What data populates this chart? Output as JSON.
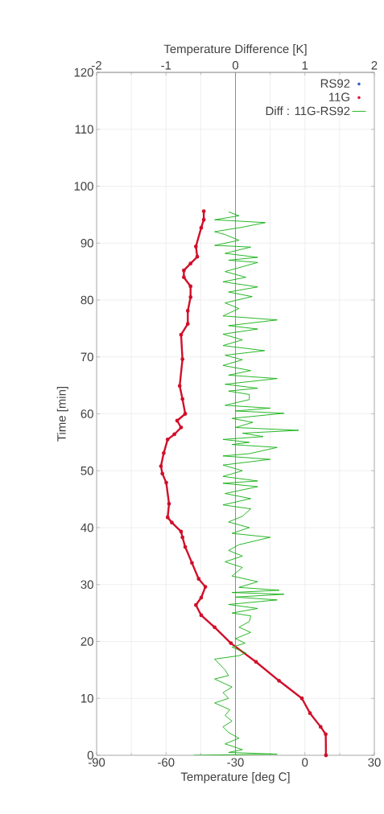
{
  "chart_data": {
    "type": "line",
    "xlabel": "Temperature [deg C]",
    "x2label": "Temperature Difference [K]",
    "ylabel": "Time [min]",
    "xlim": [
      -90,
      30
    ],
    "xticks": [
      -90,
      -60,
      -30,
      0,
      30
    ],
    "x2lim": [
      -2,
      2
    ],
    "x2ticks": [
      -2,
      -1,
      0,
      1,
      2
    ],
    "ylim": [
      0,
      120
    ],
    "yticks": [
      0,
      10,
      20,
      30,
      40,
      50,
      60,
      70,
      80,
      90,
      100,
      110,
      120
    ],
    "grid": true,
    "legend": "top right",
    "ref_lines": [
      {
        "axis": "x2",
        "value": 0,
        "color": "#808080"
      }
    ],
    "series": [
      {
        "name": "RS92",
        "color": "#3060c0",
        "marker": "circle",
        "x": [
          null
        ],
        "values": [
          null
        ]
      },
      {
        "name": "11G",
        "color": "#d0102a",
        "marker": "circle",
        "x": [
          9.1,
          9,
          6.8,
          2.2,
          -1.3,
          -11.2,
          -21.1,
          -32,
          -39,
          -44.8,
          -47.1,
          -44.8,
          -43,
          -45.9,
          -48.8,
          -51.7,
          -52.9,
          -53.5,
          -57.5,
          -59.3,
          -58.7,
          -59.9,
          -61.6,
          -62.2,
          -61,
          -59.3,
          -56.4,
          -53.5,
          -55.2,
          -51.7,
          -52.9,
          -54.1,
          -52.9,
          -53.5,
          -50.6,
          -50.6,
          -49.4,
          -49.4,
          -52.3,
          -52.3,
          -49.4,
          -46.5,
          -47.1,
          -44.8,
          -43.7,
          -43.7
        ],
        "values": [
          0,
          3.7,
          5,
          7.4,
          10,
          13.1,
          16.4,
          19.7,
          22.5,
          24.6,
          26.4,
          27.7,
          29.6,
          31,
          33.8,
          36.6,
          38.3,
          39.3,
          40.9,
          41.8,
          44.2,
          47.9,
          49.5,
          50.8,
          53.1,
          55.5,
          56.4,
          57.6,
          58.8,
          60,
          62.6,
          64.9,
          69.6,
          73.9,
          75.8,
          78.1,
          80.5,
          82.4,
          84,
          85.2,
          86.4,
          87.6,
          89.4,
          92.7,
          94.1,
          95.6
        ]
      },
      {
        "name": "Diff : 11G-RS92",
        "color": "#10b010",
        "axis": "x2",
        "x": [
          -0.6,
          0.6,
          -0.1,
          0.1,
          -0.15,
          0.05,
          -0.1,
          -0.18,
          -0.05,
          -0.15,
          -0.08,
          -0.3,
          -0.1,
          -0.18,
          -0.05,
          -0.3,
          -0.1,
          -0.15,
          -0.3,
          0.05,
          0.15,
          -0.05,
          0.14,
          0,
          0.22,
          0.05,
          0.2,
          0.22,
          -0.05,
          0.32,
          -0.1,
          0.6,
          0,
          0.7,
          -0.05,
          0.63,
          0.05,
          0.32,
          -0.05,
          0.1,
          -0.15,
          0.1,
          -0.1,
          0.05,
          0.5,
          -0.05,
          0.2,
          -0.1,
          0.1,
          0.22,
          -0.18,
          0.22,
          -0.15,
          0.32,
          -0.18,
          0.32,
          -0.18,
          0.1,
          -0.18,
          0.5,
          -0.18,
          0.2,
          0.6,
          -0.05,
          0.2,
          -0.18,
          0.4,
          0.1,
          0.91,
          0,
          0.25,
          -0.05,
          0.7,
          0,
          0.5,
          -0.15,
          0.2,
          0.2,
          -0.1,
          0.32,
          -0.15,
          0.6,
          -0.1,
          0.22,
          -0.18,
          0.1,
          -0.15,
          0.42,
          -0.18,
          0.1,
          -0.18,
          0.32,
          -0.1,
          0.6,
          -0.18,
          0.05,
          -0.15,
          0.24,
          -0.1,
          0.32,
          -0.18,
          0.15,
          -0.15,
          0.32,
          -0.1,
          0.32,
          -0.15,
          0.22,
          -0.3,
          0.05,
          -0.15,
          -0.3,
          0.1,
          0.43,
          -0.3,
          0.05,
          -0.1
        ],
        "values": [
          0,
          0.2,
          0.5,
          1,
          2,
          3,
          4,
          5,
          6,
          7,
          8,
          9.2,
          10,
          11,
          12,
          13.4,
          14,
          15,
          16.9,
          17.5,
          18,
          19,
          19.7,
          20.5,
          21.6,
          22.5,
          23.5,
          24.5,
          25,
          25.8,
          26.5,
          27.3,
          27.8,
          28.3,
          28.6,
          29,
          29.5,
          30.5,
          31.5,
          33,
          34,
          35,
          36,
          37,
          38.3,
          39,
          40,
          41,
          42,
          43.3,
          44,
          45.1,
          46,
          47.2,
          47.8,
          48.2,
          49,
          50,
          51,
          52,
          52.6,
          53,
          54.1,
          54.6,
          55,
          55.5,
          56,
          56.6,
          57.1,
          57.6,
          58.5,
          59.2,
          60.1,
          60.5,
          61,
          61.5,
          62.5,
          63.4,
          64,
          64.5,
          65.2,
          66.2,
          66.8,
          67.6,
          68.5,
          69.5,
          70.3,
          71.1,
          72,
          73,
          74,
          74.9,
          75.5,
          76.5,
          77.2,
          78.5,
          79.5,
          80.6,
          81.4,
          82.3,
          83.2,
          84,
          85,
          86.6,
          87,
          87.5,
          88.2,
          89.3,
          89.6,
          90.5,
          91.5,
          92,
          92.8,
          93.6,
          94.1,
          94.8,
          95.5
        ]
      }
    ]
  }
}
